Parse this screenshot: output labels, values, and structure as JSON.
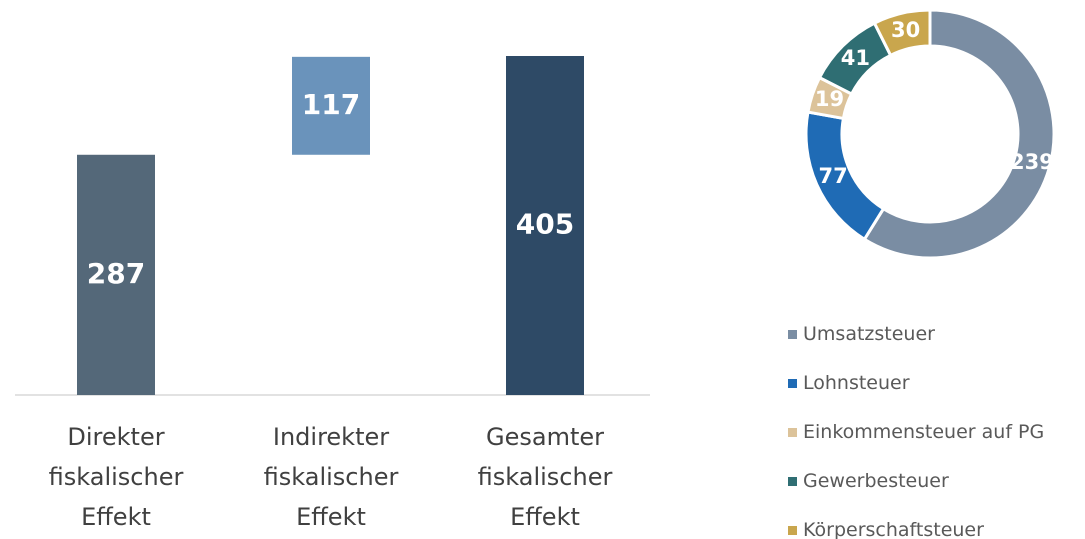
{
  "chart_data": [
    {
      "type": "waterfall",
      "categories": [
        "Direkter\nfiskalischer\nEffekt",
        "Indirekter\nfiskalischer\nEffekt",
        "Gesamter\nfiskalischer\nEffekt"
      ],
      "values": [
        287,
        117,
        405
      ],
      "is_total": [
        false,
        false,
        true
      ],
      "colors": [
        "#546879",
        "#6a93bb",
        "#2e4a66"
      ]
    },
    {
      "type": "donut",
      "categories": [
        "Umsatzsteuer",
        "Lohnsteuer",
        "Einkommensteuer auf PG",
        "Gewerbesteuer",
        "Körperschaftsteuer"
      ],
      "values": [
        239,
        77,
        19,
        41,
        30
      ],
      "colors": [
        "#7a8da3",
        "#1f6bb5",
        "#dcc39a",
        "#2f6e73",
        "#c9a64d"
      ],
      "legend": "bottom"
    }
  ]
}
